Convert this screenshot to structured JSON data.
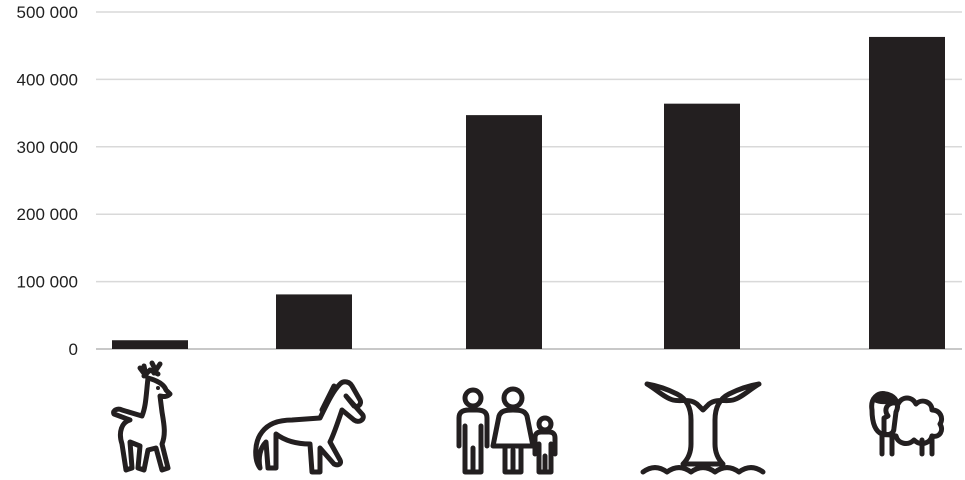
{
  "chart_data": {
    "type": "bar",
    "categories": [
      "deer",
      "horse",
      "people",
      "whale",
      "sheep"
    ],
    "values": [
      13000,
      81000,
      347000,
      364000,
      463000
    ],
    "ylim": [
      0,
      500000
    ],
    "yticks": [
      0,
      100000,
      200000,
      300000,
      400000,
      500000
    ],
    "ytick_labels": [
      "0",
      "100 000",
      "200 000",
      "300 000",
      "400 000",
      "500 000"
    ],
    "grid": true,
    "bar_color": "#231f20",
    "category_icons": [
      "deer-icon",
      "horse-icon",
      "family-icon",
      "whale-tail-icon",
      "sheep-icon"
    ]
  }
}
